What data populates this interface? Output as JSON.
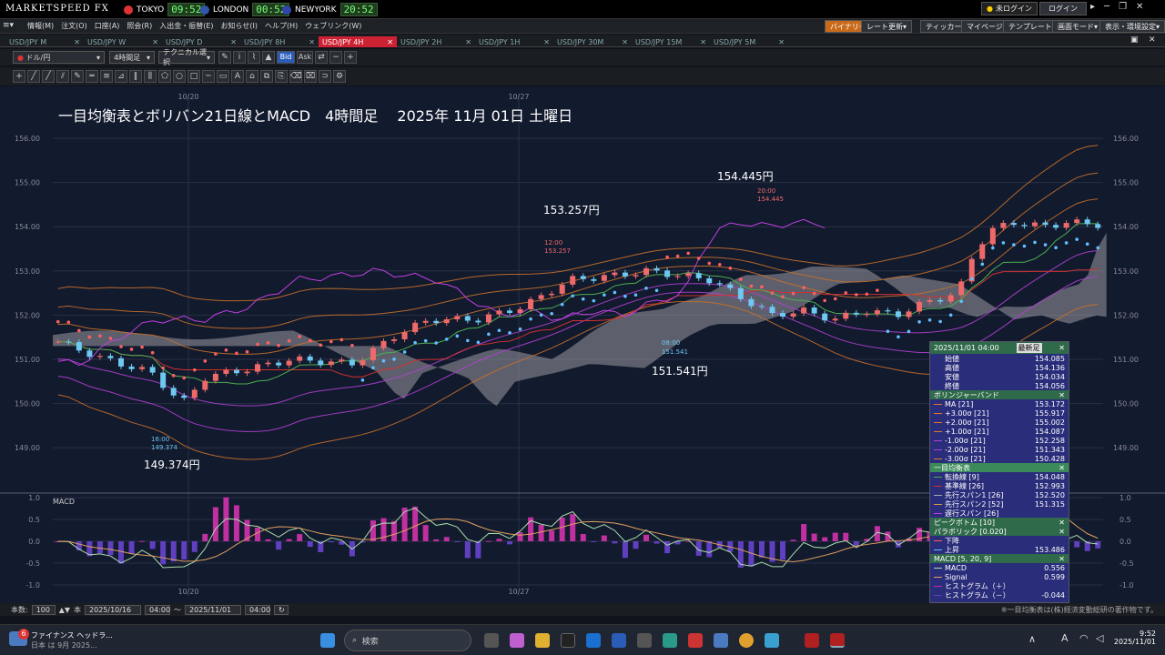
{
  "titlebar": {
    "brand": "MARKETSPEED FX",
    "clocks": [
      {
        "city": "TOKYO",
        "time": "09:52",
        "color": "#d33"
      },
      {
        "city": "LONDON",
        "time": "00:52",
        "color": "#35a"
      },
      {
        "city": "NEWYORK",
        "time": "20:52",
        "color": "#34a"
      }
    ],
    "status": "未ログイン",
    "login": "ログイン"
  },
  "menubar": {
    "items": [
      "情報(M)",
      "注文(O)",
      "口座(A)",
      "照会(R)",
      "入出金・振替(E)",
      "お知らせ(I)",
      "ヘルプ(H)",
      "ウェブリンク(W)"
    ],
    "right": [
      "バイナリー",
      "レート更新",
      "ティッカー",
      "マイページ",
      "テンプレート",
      "画面モード",
      "表示・環境設定"
    ]
  },
  "tabs": [
    "USD/JPY M",
    "USD/JPY W",
    "USD/JPY D",
    "USD/JPY 8H",
    "USD/JPY 4H",
    "USD/JPY 2H",
    "USD/JPY 1H",
    "USD/JPY 30M",
    "USD/JPY 15M",
    "USD/JPY 5M"
  ],
  "active_tab": 4,
  "toolbar": {
    "pair": "ドル/円",
    "timeframe": "4時間足",
    "tech": "テクニカル選択",
    "bid": "Bid",
    "ask": "Ask"
  },
  "chart": {
    "title": "一目均衡表とボリバン21日線とMACD　4時間足　 2025年 11月 01日 土曜日",
    "date_labels": [
      "10/20",
      "10/27"
    ],
    "y_ticks": [
      "156.00",
      "155.00",
      "154.00",
      "153.00",
      "152.00",
      "151.00",
      "150.00",
      "149.00"
    ],
    "macd_label": "MACD",
    "macd_ticks": [
      "1.0",
      "0.5",
      "0.0",
      "-0.5",
      "-1.0"
    ],
    "annotations": {
      "high": "154.445円",
      "high_small_time": "20:00",
      "high_small_val": "154.445",
      "mid": "153.257円",
      "mid_small_time": "12:00",
      "mid_small_val": "153.257",
      "low": "151.541円",
      "low_small_time": "08:00",
      "low_small_val": "151.541",
      "bottom": "149.374円",
      "bottom_small_time": "16:00",
      "bottom_small_val": "149.374"
    }
  },
  "panel": {
    "header": "2025/11/01 04:00",
    "latest": "最新足",
    "ohlc": [
      {
        "label": "始値",
        "value": "154.085"
      },
      {
        "label": "高値",
        "value": "154.136"
      },
      {
        "label": "安値",
        "value": "154.034"
      },
      {
        "label": "終値",
        "value": "154.056"
      }
    ],
    "bb_title": "ボリンジャーバンド",
    "bb": [
      {
        "label": "MA [21]",
        "value": "153.172",
        "color": "#e07a30"
      },
      {
        "label": "+3.00σ [21]",
        "value": "155.917",
        "color": "#e07a30"
      },
      {
        "label": "+2.00σ [21]",
        "value": "155.002",
        "color": "#e07a30"
      },
      {
        "label": "+1.00σ [21]",
        "value": "154.087",
        "color": "#e07a30"
      },
      {
        "label": "-1.00σ [21]",
        "value": "152.258",
        "color": "#b040d0"
      },
      {
        "label": "-2.00σ [21]",
        "value": "151.343",
        "color": "#b040d0"
      },
      {
        "label": "-3.00σ [21]",
        "value": "150.428",
        "color": "#e07a30"
      }
    ],
    "ichi_title": "一目均衡表",
    "ichi": [
      {
        "label": "転換線 [9]",
        "value": "154.048",
        "color": "#4caf50"
      },
      {
        "label": "基準線 [26]",
        "value": "152.993",
        "color": "#d03030"
      },
      {
        "label": "先行スパン1 [26]",
        "value": "152.520",
        "color": "#aaaaaa"
      },
      {
        "label": "先行スパン2 [52]",
        "value": "151.315",
        "color": "#d0a040"
      },
      {
        "label": "遅行スパン [26]",
        "value": "",
        "color": "#c040e0"
      }
    ],
    "peak_title": "ピークボトム [10]",
    "para_title": "パラボリック [0.020]",
    "para": [
      {
        "label": "下降",
        "value": "",
        "color": "#ff6060"
      },
      {
        "label": "上昇",
        "value": "153.486",
        "color": "#60c0ff"
      }
    ],
    "macd_title": "MACD [5, 20, 9]",
    "macd": [
      {
        "label": "MACD",
        "value": "0.556",
        "color": "#aaddaa"
      },
      {
        "label": "Signal",
        "value": "0.599",
        "color": "#e0a060"
      },
      {
        "label": "ヒストグラム（＋）",
        "value": "",
        "color": "#c030a0"
      },
      {
        "label": "ヒストグラム（－）",
        "value": "-0.044",
        "color": "#6040c0"
      }
    ]
  },
  "statusbar": {
    "count_label": "本数:",
    "count": "100",
    "bars": "本",
    "from_date": "2025/10/16",
    "from_time": "04:00",
    "to": "〜",
    "to_date": "2025/11/01",
    "to_time": "04:00",
    "note": "※一目均衡表は(株)経済変動総研の著作物です。"
  },
  "taskbar": {
    "news_title": "ファイナンス ヘッドラ...",
    "news_sub": "日本 は 9月 2025...",
    "badge": "6",
    "search": "検索",
    "time": "9:52",
    "date": "2025/11/01",
    "ime": "A"
  }
}
